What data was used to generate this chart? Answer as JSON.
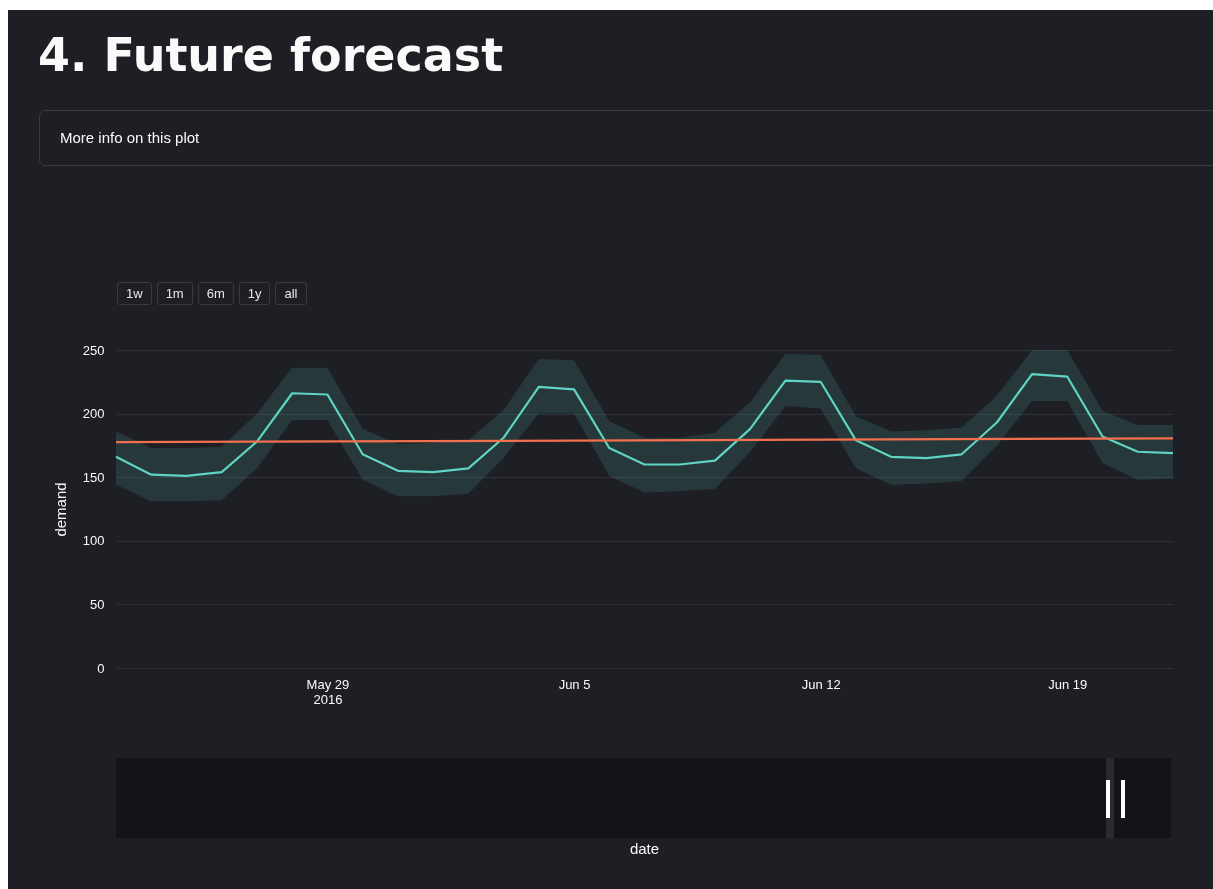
{
  "chart_data": {
    "type": "line",
    "title": "4. Future forecast",
    "ylabel": "demand",
    "annotations": [
      "More info on this plot",
      "1w",
      "1m",
      "6m",
      "1y",
      "all",
      "date"
    ],
    "x": [
      "2016-05-23",
      "2016-05-24",
      "2016-05-25",
      "2016-05-26",
      "2016-05-27",
      "2016-05-28",
      "2016-05-29",
      "2016-05-30",
      "2016-05-31",
      "2016-06-01",
      "2016-06-02",
      "2016-06-03",
      "2016-06-04",
      "2016-06-05",
      "2016-06-06",
      "2016-06-07",
      "2016-06-08",
      "2016-06-09",
      "2016-06-10",
      "2016-06-11",
      "2016-06-12",
      "2016-06-13",
      "2016-06-14",
      "2016-06-15",
      "2016-06-16",
      "2016-06-17",
      "2016-06-18",
      "2016-06-19",
      "2016-06-20",
      "2016-06-21",
      "2016-06-22"
    ],
    "series": [
      {
        "color": "#5fd3c4",
        "values": [
          166,
          152,
          151,
          154,
          178,
          216,
          215,
          168,
          155,
          154,
          157,
          181,
          221,
          219,
          173,
          160,
          160,
          163,
          188,
          226,
          225,
          179,
          166,
          165,
          168,
          193,
          231,
          229,
          182,
          170,
          169
        ],
        "lower": [
          144,
          131,
          131,
          132,
          157,
          195,
          195,
          148,
          135,
          135,
          137,
          165,
          200,
          200,
          151,
          138,
          139,
          141,
          170,
          206,
          204,
          157,
          144,
          145,
          147,
          175,
          210,
          210,
          161,
          148,
          149
        ],
        "upper": [
          186,
          173,
          173,
          174,
          200,
          236,
          236,
          188,
          176,
          177,
          179,
          203,
          243,
          242,
          194,
          181,
          181,
          185,
          209,
          247,
          246,
          198,
          186,
          187,
          189,
          214,
          250,
          250,
          202,
          191,
          191
        ]
      },
      {
        "type": "line",
        "color": "#f2704f",
        "x": [
          "2016-05-23",
          "2016-06-22"
        ],
        "values": [
          177.5,
          180.5
        ]
      }
    ],
    "xlim": [
      "2016-05-23",
      "2016-06-22"
    ],
    "xticks": [
      {
        "value": "2016-05-29",
        "label": "May 29\n2016"
      },
      {
        "value": "2016-06-05",
        "label": "Jun 5"
      },
      {
        "value": "2016-06-12",
        "label": "Jun 12"
      },
      {
        "value": "2016-06-19",
        "label": "Jun 19"
      }
    ],
    "ylim": [
      0,
      250
    ],
    "yticks": [
      0,
      50,
      100,
      150,
      200,
      250
    ],
    "grid": "y"
  }
}
